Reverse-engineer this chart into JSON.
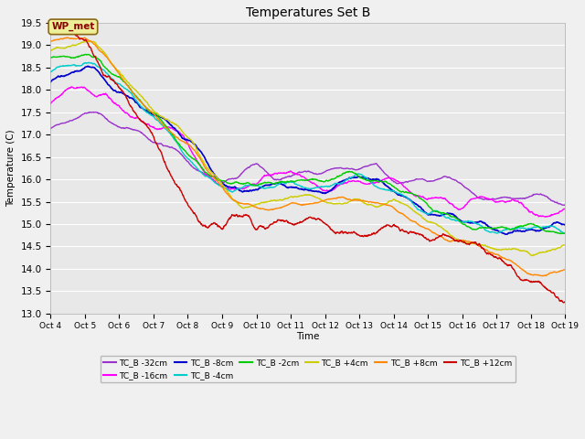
{
  "title": "Temperatures Set B",
  "xlabel": "Time",
  "ylabel": "Temperature (C)",
  "ylim": [
    13.0,
    19.5
  ],
  "xlim": [
    0,
    15
  ],
  "fig_width": 6.4,
  "fig_height": 4.8,
  "dpi": 100,
  "background_color": "#f0f0f0",
  "plot_bg_color": "#e8e8e8",
  "grid_color": "#ffffff",
  "series": [
    {
      "label": "TC_B -32cm",
      "color": "#9933cc",
      "lw": 1.0
    },
    {
      "label": "TC_B -16cm",
      "color": "#ff00ff",
      "lw": 1.0
    },
    {
      "label": "TC_B -8cm",
      "color": "#0000cc",
      "lw": 1.2
    },
    {
      "label": "TC_B -4cm",
      "color": "#00cccc",
      "lw": 1.0
    },
    {
      "label": "TC_B -2cm",
      "color": "#00cc00",
      "lw": 1.0
    },
    {
      "label": "TC_B +4cm",
      "color": "#cccc00",
      "lw": 1.0
    },
    {
      "label": "TC_B +8cm",
      "color": "#ff8800",
      "lw": 1.0
    },
    {
      "label": "TC_B +12cm",
      "color": "#cc0000",
      "lw": 1.0
    }
  ],
  "wp_met_label": "WP_met",
  "xtick_labels": [
    "Oct 4",
    "Oct 5",
    "Oct 6",
    "Oct 7",
    "Oct 8",
    "Oct 9",
    "Oct 10",
    "Oct 11",
    "Oct 12",
    "Oct 13",
    "Oct 14",
    "Oct 15",
    "Oct 16",
    "Oct 17",
    "Oct 18",
    "Oct 19"
  ],
  "n_points": 1500
}
